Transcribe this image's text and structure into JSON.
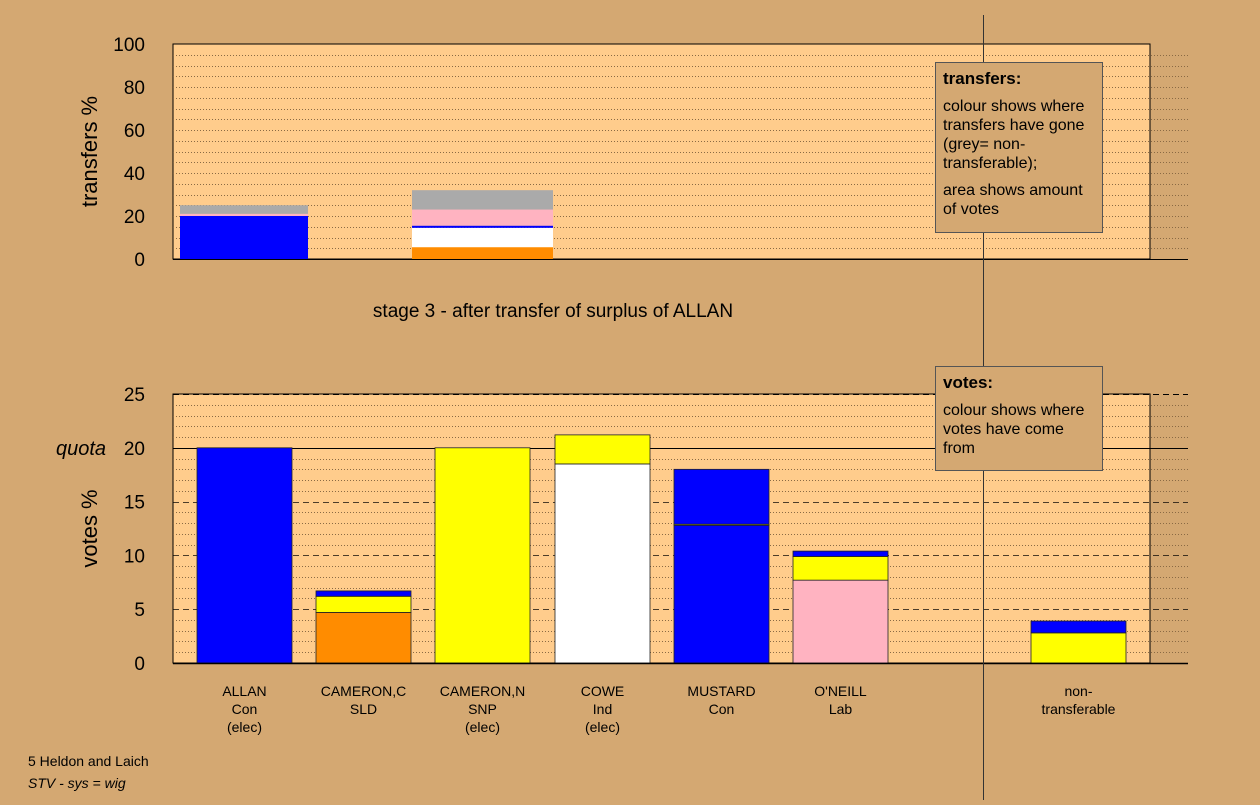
{
  "colors": {
    "background": "#d4a872",
    "plot_area": "#ffcc8c",
    "Con": "#0000ff",
    "SLD": "#ff8c00",
    "SNP": "#ffff00",
    "Ind": "#ffffff",
    "Lab": "#ffb3c1",
    "non_transferable": "#aaaaaa"
  },
  "chart_data": [
    {
      "type": "bar",
      "stacked": true,
      "ylabel": "transfers %",
      "ylim": [
        0,
        100
      ],
      "yticks": [
        0,
        20,
        40,
        60,
        80,
        100
      ],
      "grid": true,
      "slots": [
        "ALLAN",
        "CAMERON,C"
      ],
      "bars": [
        {
          "slot": 0,
          "segments": [
            {
              "from": "Con",
              "value": 20,
              "color": "#0000ff"
            },
            {
              "from": "Lab",
              "value": 1,
              "color": "#ffb3c1"
            },
            {
              "from": "non-transferable",
              "value": 4,
              "color": "#aaaaaa"
            }
          ]
        },
        {
          "slot": 1,
          "segments": [
            {
              "from": "SLD",
              "value": 5.5,
              "color": "#ff8c00"
            },
            {
              "from": "Ind",
              "value": 9,
              "color": "#ffffff"
            },
            {
              "from": "Con",
              "value": 1,
              "color": "#0000ff"
            },
            {
              "from": "Lab",
              "value": 7.5,
              "color": "#ffb3c1"
            },
            {
              "from": "non-transferable",
              "value": 9,
              "color": "#aaaaaa"
            }
          ]
        }
      ]
    },
    {
      "type": "bar",
      "stacked": true,
      "ylabel": "votes %",
      "ylim": [
        0,
        25
      ],
      "yticks": [
        0,
        5,
        10,
        15,
        20,
        25
      ],
      "grid": true,
      "quota": 20,
      "quota_label": "quota",
      "categories": [
        "ALLAN",
        "CAMERON,C",
        "CAMERON,N",
        "COWE",
        "MUSTARD",
        "O'NEILL",
        "non-transferable"
      ],
      "bars": [
        {
          "name": "ALLAN",
          "party": "Con",
          "status": "(elec)",
          "segments": [
            {
              "from": "Con",
              "value": 20,
              "color": "#0000ff"
            }
          ]
        },
        {
          "name": "CAMERON,C",
          "party": "SLD",
          "status": "",
          "segments": [
            {
              "from": "SLD",
              "value": 4.7,
              "color": "#ff8c00"
            },
            {
              "from": "SNP",
              "value": 1.5,
              "color": "#ffff00"
            },
            {
              "from": "Con",
              "value": 0.5,
              "color": "#0000ff"
            }
          ]
        },
        {
          "name": "CAMERON,N",
          "party": "SNP",
          "status": "(elec)",
          "segments": [
            {
              "from": "SNP",
              "value": 20,
              "color": "#ffff00"
            }
          ]
        },
        {
          "name": "COWE",
          "party": "Ind",
          "status": "(elec)",
          "segments": [
            {
              "from": "Ind",
              "value": 18.5,
              "color": "#ffffff"
            },
            {
              "from": "SNP",
              "value": 2.7,
              "color": "#ffff00"
            }
          ]
        },
        {
          "name": "MUSTARD",
          "party": "Con",
          "status": "",
          "segments": [
            {
              "from": "Con",
              "value": 12.8,
              "color": "#0000ff"
            },
            {
              "from": "SNP",
              "value": 0.1,
              "color": "#ffff00"
            },
            {
              "from": "Con",
              "value": 5.1,
              "color": "#0000ff"
            }
          ]
        },
        {
          "name": "O'NEILL",
          "party": "Lab",
          "status": "",
          "segments": [
            {
              "from": "Lab",
              "value": 7.7,
              "color": "#ffb3c1"
            },
            {
              "from": "SNP",
              "value": 2.2,
              "color": "#ffff00"
            },
            {
              "from": "Con",
              "value": 0.5,
              "color": "#0000ff"
            }
          ]
        },
        {
          "name": "non-",
          "party": "transferable",
          "status": "",
          "segments": [
            {
              "from": "SNP",
              "value": 2.8,
              "color": "#ffff00"
            },
            {
              "from": "Con",
              "value": 1.1,
              "color": "#0000ff"
            }
          ]
        }
      ]
    }
  ],
  "stage_title": "stage 3 - after transfer of surplus of ALLAN",
  "legend_transfers": {
    "title": "transfers:",
    "line1": "colour shows where transfers have gone (grey= non-transferable);",
    "line2": "area shows amount of votes"
  },
  "legend_votes": {
    "title": "votes:",
    "line1": "colour shows where votes have come from"
  },
  "footer": {
    "place": "5 Heldon and Laich",
    "system": "STV - sys = wig"
  }
}
